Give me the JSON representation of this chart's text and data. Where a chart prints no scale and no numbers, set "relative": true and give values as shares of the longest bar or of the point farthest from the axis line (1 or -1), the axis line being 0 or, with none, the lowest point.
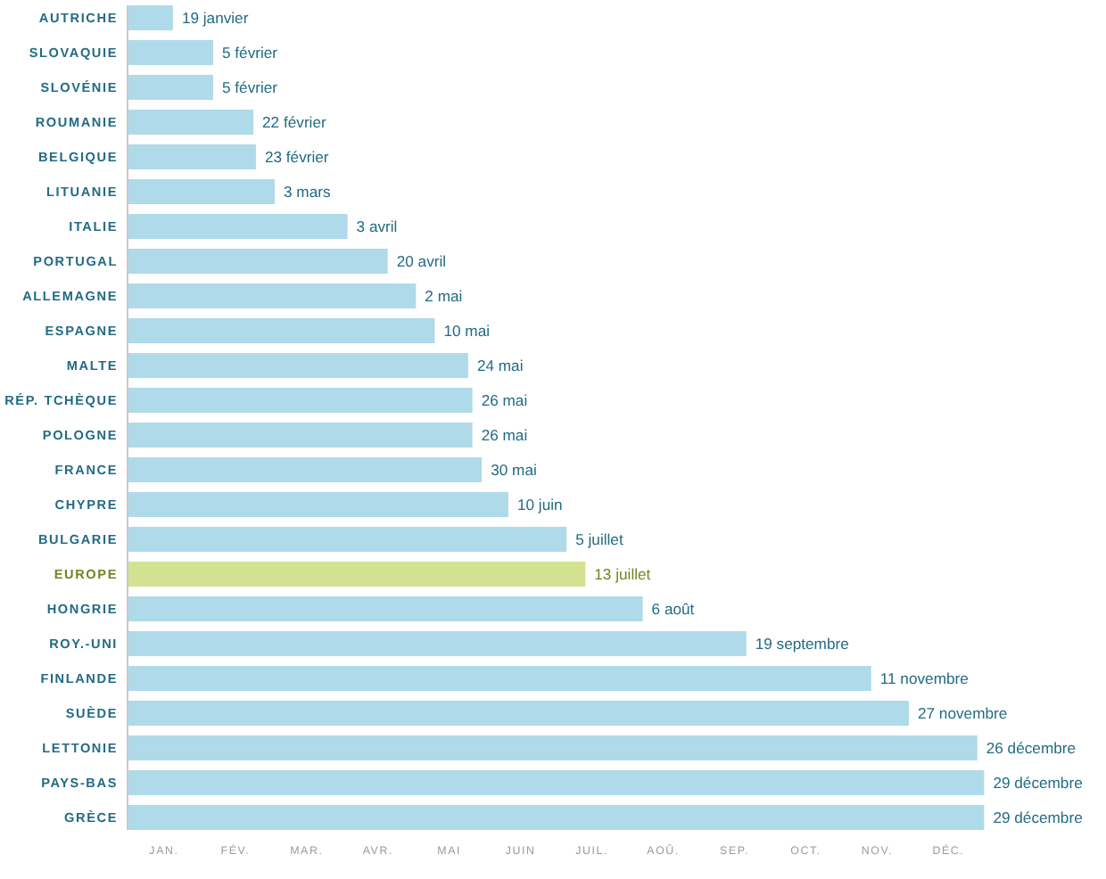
{
  "chart_data": {
    "type": "bar",
    "orientation": "horizontal",
    "relative": true,
    "categories": [
      "AUTRICHE",
      "SLOVAQUIE",
      "SLOVÉNIE",
      "ROUMANIE",
      "BELGIQUE",
      "LITUANIE",
      "ITALIE",
      "PORTUGAL",
      "ALLEMAGNE",
      "ESPAGNE",
      "MALTE",
      "RÉP. TCHÈQUE",
      "POLOGNE",
      "FRANCE",
      "CHYPRE",
      "BULGARIE",
      "EUROPE",
      "HONGRIE",
      "ROY.-UNI",
      "FINLANDE",
      "SUÈDE",
      "LETTONIE",
      "PAYS-BAS",
      "GRÈCE"
    ],
    "values": [
      0.052,
      0.099,
      0.099,
      0.146,
      0.149,
      0.171,
      0.256,
      0.303,
      0.336,
      0.358,
      0.397,
      0.402,
      0.402,
      0.413,
      0.444,
      0.512,
      0.534,
      0.601,
      0.722,
      0.868,
      0.912,
      0.992,
      1,
      1
    ],
    "colors": [
      "#afdaea",
      "#afdaea",
      "#afdaea",
      "#afdaea",
      "#afdaea",
      "#afdaea",
      "#afdaea",
      "#afdaea",
      "#afdaea",
      "#afdaea",
      "#afdaea",
      "#afdaea",
      "#afdaea",
      "#afdaea",
      "#afdaea",
      "#afdaea",
      "#d2e291",
      "#afdaea",
      "#afdaea",
      "#afdaea",
      "#afdaea",
      "#afdaea",
      "#afdaea",
      "#afdaea"
    ],
    "annotations": [
      {
        "text": "19 janvier",
        "x": 0.052,
        "y": "AUTRICHE"
      },
      {
        "text": "5 février",
        "x": 0.099,
        "y": "SLOVAQUIE"
      },
      {
        "text": "5 février",
        "x": 0.099,
        "y": "SLOVÉNIE"
      },
      {
        "text": "22 février",
        "x": 0.146,
        "y": "ROUMANIE"
      },
      {
        "text": "23 février",
        "x": 0.149,
        "y": "BELGIQUE"
      },
      {
        "text": "3 mars",
        "x": 0.171,
        "y": "LITUANIE"
      },
      {
        "text": "3 avril",
        "x": 0.256,
        "y": "ITALIE"
      },
      {
        "text": "20 avril",
        "x": 0.303,
        "y": "PORTUGAL"
      },
      {
        "text": "2 mai",
        "x": 0.336,
        "y": "ALLEMAGNE"
      },
      {
        "text": "10 mai",
        "x": 0.358,
        "y": "ESPAGNE"
      },
      {
        "text": "24 mai",
        "x": 0.397,
        "y": "MALTE"
      },
      {
        "text": "26 mai",
        "x": 0.402,
        "y": "RÉP. TCHÈQUE"
      },
      {
        "text": "26 mai",
        "x": 0.402,
        "y": "POLOGNE"
      },
      {
        "text": "30 mai",
        "x": 0.413,
        "y": "FRANCE"
      },
      {
        "text": "10 juin",
        "x": 0.444,
        "y": "CHYPRE"
      },
      {
        "text": "5 juillet",
        "x": 0.512,
        "y": "BULGARIE"
      },
      {
        "text": "13 juillet",
        "x": 0.534,
        "y": "EUROPE"
      },
      {
        "text": "6 août",
        "x": 0.601,
        "y": "HONGRIE"
      },
      {
        "text": "19 septembre",
        "x": 0.722,
        "y": "ROY.-UNI"
      },
      {
        "text": "11 novembre",
        "x": 0.868,
        "y": "FINLANDE"
      },
      {
        "text": "27 novembre",
        "x": 0.912,
        "y": "SUÈDE"
      },
      {
        "text": "26 décembre",
        "x": 0.992,
        "y": "LETTONIE"
      },
      {
        "text": "29 décembre",
        "x": 1,
        "y": "PAYS-BAS"
      },
      {
        "text": "29 décembre",
        "x": 1,
        "y": "GRÈCE"
      },
      "JAN.",
      "FÉV.",
      "MAR.",
      "AVR.",
      "MAI",
      "JUIN",
      "JUIL.",
      "AOÛ.",
      "SEP.",
      "OCT.",
      "NOV.",
      "DÉC."
    ]
  }
}
